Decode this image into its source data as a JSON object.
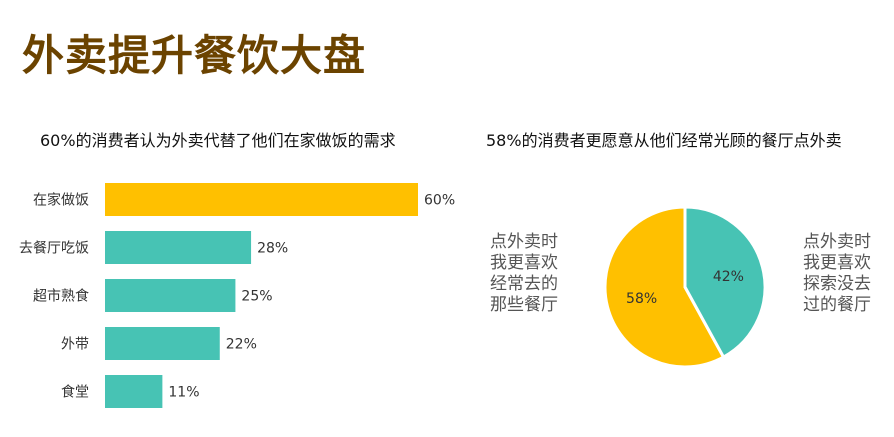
{
  "page": {
    "title": "外卖提升餐饮大盘"
  },
  "chart_data": [
    {
      "type": "bar",
      "orientation": "horizontal",
      "title": "60%的消费者认为外卖代替了他们在家做饭的需求",
      "categories": [
        "在家做饭",
        "去餐厅吃饭",
        "超市熟食",
        "外带",
        "食堂"
      ],
      "values": [
        60,
        28,
        25,
        22,
        11
      ],
      "value_labels": [
        "60%",
        "28%",
        "25%",
        "22%",
        "11%"
      ],
      "xlim": [
        0,
        60
      ],
      "grid": false,
      "colors": [
        "#ffc000",
        "#47c3b4",
        "#47c3b4",
        "#47c3b4",
        "#47c3b4"
      ]
    },
    {
      "type": "pie",
      "title": "58%的消费者更愿意从他们经常光顾的餐厅点外卖",
      "slices": [
        {
          "value": 58,
          "label": "58%",
          "color": "#ffc000",
          "description": "点外卖时我更喜欢经常去的那些餐厅"
        },
        {
          "value": 42,
          "label": "42%",
          "color": "#47c3b4",
          "description": "点外卖时我更喜欢探索没去过的餐厅"
        }
      ]
    }
  ]
}
